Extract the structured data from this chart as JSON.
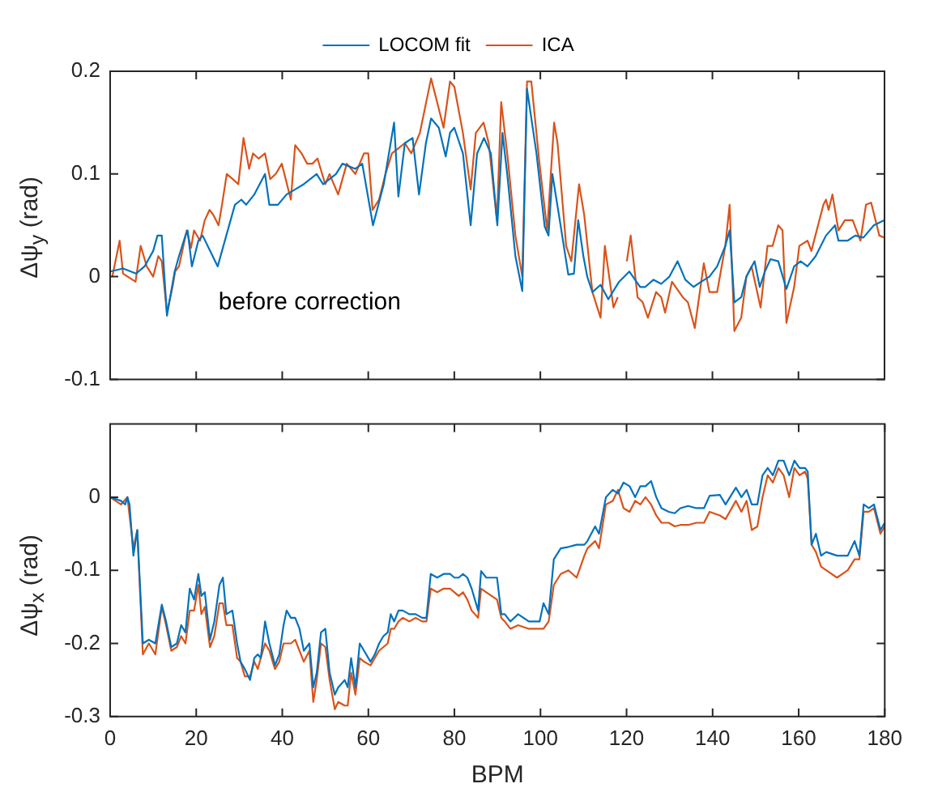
{
  "chart_data": [
    {
      "type": "line",
      "ylabel": "Δψ$_{y}$ (rad)",
      "annotations": [
        "before correction"
      ],
      "xlim": [
        0,
        180
      ],
      "xticks": [
        0,
        20,
        40,
        60,
        80,
        100,
        120,
        140,
        160,
        180
      ],
      "ylim": [
        -0.1,
        0.2
      ],
      "yticks": [
        -0.1,
        0,
        0.1,
        0.2
      ],
      "tick_labels": "y",
      "grid": false,
      "legend": "top",
      "marker": "none",
      "line_style": "solid",
      "series": [
        {
          "name": "LOCOM fit",
          "color": "#0072bd",
          "x": [
            0,
            3,
            6,
            8,
            10,
            11,
            12,
            13.2,
            15,
            16,
            17.5,
            18,
            19,
            20.5,
            21.5,
            25,
            29,
            30.5,
            31.6,
            33.5,
            36,
            37,
            39,
            41,
            43,
            45,
            48,
            49.5,
            52.5,
            54,
            57,
            58.6,
            61.1,
            63.6,
            66,
            67,
            68.5,
            70.3,
            71.8,
            73.4,
            74.6,
            76.4,
            78,
            79,
            80,
            82,
            83.8,
            85.3,
            86.9,
            88.5,
            90,
            91.2,
            92.3,
            94.2,
            95.8,
            96.9,
            99.1,
            101,
            101.9,
            102.8,
            104.7,
            106.5,
            107.8,
            108.8,
            110,
            110.9,
            112.1,
            114,
            115.8,
            118.3,
            120.7,
            123.2,
            124.4,
            126.3,
            128.1,
            130,
            131.9,
            133.7,
            135.6,
            137.4,
            139.3,
            141.1,
            143,
            144,
            145.1,
            146.7,
            147.9,
            149.8,
            151,
            152.2,
            153.5,
            155.3,
            157.2,
            159,
            160.5,
            162.1,
            164,
            166.4,
            168.5,
            169.3,
            171.4,
            173.2,
            175.1,
            177.5,
            180
          ],
          "values": [
            0.005,
            0.008,
            0.003,
            0.01,
            0.025,
            0.04,
            0.04,
            -0.038,
            0.005,
            0.02,
            0.04,
            0.045,
            0.01,
            0.035,
            0.04,
            0.01,
            0.07,
            0.075,
            0.07,
            0.08,
            0.1,
            0.07,
            0.07,
            0.08,
            0.085,
            0.09,
            0.1,
            0.09,
            0.1,
            0.11,
            0.105,
            0.11,
            0.05,
            0.09,
            0.15,
            0.078,
            0.13,
            0.135,
            0.08,
            0.13,
            0.154,
            0.145,
            0.117,
            0.14,
            0.145,
            0.12,
            0.05,
            0.12,
            0.135,
            0.12,
            0.05,
            0.14,
            0.1,
            0.02,
            -0.014,
            0.183,
            0.12,
            0.049,
            0.04,
            0.1,
            0.05,
            0.002,
            0.003,
            0.055,
            0.02,
            0,
            -0.015,
            -0.008,
            -0.022,
            -0.005,
            0.005,
            -0.01,
            -0.01,
            -0.003,
            -0.007,
            0,
            0.015,
            -0.003,
            -0.01,
            -0.005,
            0,
            0.01,
            0.03,
            0.045,
            -0.025,
            -0.02,
            0,
            0.015,
            -0.01,
            0.005,
            0.017,
            0.015,
            -0.012,
            0.01,
            0.015,
            0.01,
            0.02,
            0.04,
            0.05,
            0.035,
            0.035,
            0.04,
            0.038,
            0.05,
            0.055
          ]
        },
        {
          "name": "ICA",
          "color": "#d95319",
          "x": [
            0.5,
            2.2,
            3,
            5.9,
            7.1,
            8.5,
            10,
            11.2,
            12,
            13.2,
            14.5,
            15.1,
            16,
            17.8,
            18.8,
            19.5,
            20.9,
            22,
            23.1,
            24,
            25.2,
            26,
            27.1,
            28.5,
            29.8,
            31,
            32.3,
            33.2,
            34.5,
            36,
            37.2,
            38.5,
            39.9,
            42,
            43,
            44.5,
            45.8,
            47,
            48.2,
            50,
            51,
            53,
            55,
            57,
            59,
            60,
            61,
            62.5,
            64,
            65.5,
            67,
            68.5,
            70,
            72,
            74.6,
            76,
            77.5,
            79,
            80,
            82,
            83.8,
            85,
            86.8,
            88,
            89.9,
            90.9,
            92.3,
            94.2,
            95.8,
            96.9,
            97.9,
            99.8,
            101.6,
            103.2,
            104,
            106,
            107.2,
            109,
            110.2,
            112.1,
            114,
            115,
            117,
            118,
            119,
            120.1,
            121,
            122.6,
            123.8,
            125,
            126.9,
            128.1,
            129,
            130.6,
            133.1,
            134.3,
            135.9,
            138,
            139.3,
            141.1,
            143,
            144,
            145.1,
            146.7,
            147.9,
            149.1,
            151.2,
            152.8,
            154,
            155.3,
            156.3,
            157.2,
            159,
            160.2,
            162.1,
            163,
            165.8,
            166.4,
            167,
            167.9,
            169.3,
            170.8,
            172.6,
            174.4,
            175.7,
            176.9,
            178.8,
            180
          ],
          "values": [
            0,
            0.035,
            0.003,
            -0.005,
            0.03,
            0.01,
            0,
            0.02,
            0.015,
            -0.035,
            -0.01,
            0.005,
            0.01,
            0.045,
            0.028,
            0.045,
            0.035,
            0.055,
            0.065,
            0.06,
            0.05,
            0.07,
            0.1,
            0.095,
            0.09,
            0.135,
            0.105,
            0.12,
            0.115,
            0.12,
            0.095,
            0.1,
            0.11,
            0.075,
            0.128,
            0.12,
            0.11,
            0.11,
            0.115,
            0.09,
            0.1,
            0.08,
            0.11,
            0.1,
            0.12,
            0.12,
            0.065,
            0.075,
            0.1,
            0.12,
            0.125,
            0.13,
            0.12,
            0.14,
            0.193,
            0.17,
            0.145,
            0.19,
            0.185,
            0.14,
            0.085,
            0.14,
            0.15,
            0.13,
            0.055,
            0.17,
            0.12,
            0.04,
            0,
            0.19,
            0.19,
            0.11,
            0.045,
            0.15,
            0.13,
            0.03,
            0.015,
            0.09,
            0.06,
            -0.015,
            -0.04,
            0.03,
            -0.03,
            -0.02,
            null,
            0.015,
            0.04,
            -0.02,
            -0.025,
            -0.04,
            -0.015,
            -0.02,
            -0.035,
            -0.005,
            -0.02,
            -0.025,
            -0.05,
            0.013,
            -0.015,
            -0.015,
            0.03,
            0.07,
            -0.053,
            -0.04,
            0,
            0.01,
            -0.03,
            0.03,
            0.03,
            0.05,
            0.045,
            -0.045,
            -0.01,
            0.03,
            0.035,
            0.025,
            0.07,
            0.075,
            0.065,
            0.08,
            0.045,
            0.055,
            0.055,
            0.035,
            0.07,
            0.072,
            0.04,
            0.038
          ]
        }
      ]
    },
    {
      "type": "line",
      "xlabel": "BPM",
      "ylabel": "Δψ$_{x}$ (rad)",
      "xlim": [
        0,
        180
      ],
      "xticks": [
        0,
        20,
        40,
        60,
        80,
        100,
        120,
        140,
        160,
        180
      ],
      "ylim": [
        -0.3,
        0.1
      ],
      "yticks": [
        -0.3,
        -0.2,
        -0.1,
        0
      ],
      "grid": false,
      "marker": "none",
      "line_style": "solid",
      "series": [
        {
          "color": "#0072bd",
          "x": [
            0,
            2.5,
            3.5,
            4,
            4.5,
            5.4,
            6.3,
            7.6,
            9,
            10.5,
            12,
            13,
            14.2,
            15.5,
            16.5,
            17.5,
            18.5,
            19.5,
            20.5,
            21.2,
            22,
            23.2,
            24.2,
            25.4,
            26.2,
            27,
            28.4,
            29.5,
            30.3,
            31.3,
            32.5,
            33.5,
            34.3,
            35,
            36,
            37,
            38.3,
            39.3,
            40.3,
            41,
            42,
            43,
            44,
            45,
            46.3,
            47.2,
            48,
            49,
            50,
            51,
            52.2,
            53,
            54.5,
            55.2,
            56,
            57,
            58,
            59,
            60.5,
            61.5,
            62.5,
            63.5,
            64.5,
            65.2,
            66,
            67,
            68,
            69.5,
            71,
            72.5,
            73.5,
            74.5,
            76,
            77.5,
            79,
            80,
            81,
            82,
            83,
            84,
            85.5,
            86.2,
            87.4,
            89.9,
            90.9,
            91.7,
            93,
            94.8,
            97.3,
            99.8,
            100.7,
            101.9,
            103.1,
            104.7,
            106.5,
            108.4,
            110.2,
            110.9,
            112.7,
            113.6,
            115.2,
            116.8,
            118,
            119.3,
            120.7,
            122,
            123.2,
            124.4,
            125.7,
            126.9,
            128.1,
            129.8,
            131.2,
            132.5,
            134.3,
            136.2,
            138,
            139.3,
            141.7,
            143,
            145.4,
            146.7,
            147.9,
            149.1,
            150.4,
            151.6,
            152.8,
            154,
            155.3,
            156.5,
            157.8,
            159,
            160.2,
            161.5,
            162.1,
            163,
            164,
            165.2,
            166.4,
            168.9,
            171.4,
            173,
            174.1,
            175.1,
            176.3,
            177.5,
            179,
            180
          ],
          "values": [
            0,
            -0.005,
            -0.01,
            0,
            -0.01,
            -0.08,
            -0.045,
            -0.2,
            -0.195,
            -0.2,
            -0.147,
            -0.17,
            -0.205,
            -0.2,
            -0.175,
            -0.185,
            -0.125,
            -0.14,
            -0.105,
            -0.135,
            -0.13,
            -0.195,
            -0.17,
            -0.12,
            -0.11,
            -0.16,
            -0.155,
            -0.2,
            -0.225,
            -0.235,
            -0.25,
            -0.22,
            -0.215,
            -0.22,
            -0.17,
            -0.2,
            -0.23,
            -0.215,
            -0.175,
            -0.155,
            -0.165,
            -0.165,
            -0.18,
            -0.21,
            -0.2,
            -0.26,
            -0.24,
            -0.185,
            -0.18,
            -0.24,
            -0.27,
            -0.26,
            -0.25,
            -0.26,
            -0.22,
            -0.26,
            -0.2,
            -0.21,
            -0.225,
            -0.215,
            -0.2,
            -0.19,
            -0.185,
            -0.16,
            -0.17,
            -0.155,
            -0.155,
            -0.16,
            -0.16,
            -0.165,
            -0.165,
            -0.105,
            -0.11,
            -0.105,
            -0.105,
            -0.11,
            -0.11,
            -0.105,
            -0.11,
            -0.125,
            -0.155,
            -0.101,
            -0.11,
            -0.11,
            -0.16,
            -0.16,
            -0.17,
            -0.16,
            -0.17,
            -0.17,
            -0.145,
            -0.16,
            -0.085,
            -0.07,
            -0.068,
            -0.065,
            -0.065,
            -0.06,
            -0.04,
            -0.05,
            0,
            0.01,
            0.005,
            0.02,
            0.015,
            0,
            0.015,
            0.015,
            0.022,
            0,
            -0.015,
            -0.02,
            -0.022,
            -0.015,
            -0.012,
            -0.015,
            -0.015,
            0.002,
            0.003,
            -0.01,
            0.013,
            0,
            0.01,
            -0.01,
            -0.01,
            0.03,
            0.04,
            0.03,
            0.05,
            0.05,
            0.03,
            0.05,
            0.04,
            0.04,
            0.035,
            -0.065,
            -0.05,
            -0.08,
            -0.075,
            -0.08,
            -0.08,
            -0.06,
            -0.08,
            -0.01,
            -0.015,
            -0.01,
            -0.045,
            -0.035
          ]
        },
        {
          "color": "#d95319",
          "x": [
            0,
            2.5,
            4,
            5.4,
            6.3,
            7.6,
            9,
            10.5,
            12,
            13,
            14.2,
            15.5,
            16.5,
            17.5,
            18.5,
            19.5,
            20.5,
            21.2,
            22,
            23.2,
            24.2,
            25.4,
            26.2,
            27,
            28.4,
            29.5,
            30.3,
            31.3,
            32.5,
            33.5,
            34.3,
            35,
            36,
            37,
            38.3,
            39.3,
            40.3,
            41,
            42,
            43,
            44,
            45,
            46.3,
            47.2,
            48,
            49,
            50,
            51,
            52.2,
            53,
            54.5,
            55.2,
            56,
            57,
            58,
            59,
            60.5,
            61.5,
            62.5,
            63.5,
            64.5,
            65.2,
            66,
            67,
            68,
            69.5,
            71,
            72.5,
            73.5,
            74.5,
            76,
            77.5,
            79,
            80,
            81,
            82,
            83,
            84,
            85.5,
            86.2,
            87.4,
            89.9,
            90.9,
            91.7,
            93,
            94.8,
            97.3,
            99.8,
            100.7,
            101.9,
            103.1,
            104.7,
            106.5,
            108.4,
            110.2,
            110.9,
            112.7,
            113.6,
            115.2,
            116.8,
            118,
            119.3,
            120.7,
            122,
            123.2,
            124.4,
            125.7,
            126.9,
            128.1,
            129.8,
            131.2,
            132.5,
            134.3,
            136.2,
            138,
            139.3,
            141.7,
            143,
            145.4,
            146.7,
            147.9,
            149.1,
            150.4,
            151.6,
            152.8,
            154,
            155.3,
            156.5,
            157.8,
            159,
            160.2,
            161.5,
            162.1,
            163,
            164,
            165.2,
            166.4,
            168.9,
            171.4,
            173,
            174.1,
            175.1,
            176.3,
            177.5,
            179,
            180
          ],
          "values": [
            0,
            -0.01,
            0,
            -0.07,
            -0.045,
            -0.215,
            -0.2,
            -0.215,
            -0.15,
            -0.175,
            -0.21,
            -0.205,
            -0.19,
            -0.2,
            -0.155,
            -0.155,
            -0.12,
            -0.16,
            -0.15,
            -0.205,
            -0.19,
            -0.145,
            -0.145,
            -0.175,
            -0.175,
            -0.22,
            -0.225,
            -0.245,
            -0.245,
            -0.225,
            -0.235,
            -0.22,
            -0.2,
            -0.21,
            -0.235,
            -0.225,
            -0.2,
            -0.2,
            -0.2,
            -0.195,
            -0.21,
            -0.225,
            -0.21,
            -0.28,
            -0.25,
            -0.2,
            -0.205,
            -0.25,
            -0.29,
            -0.28,
            -0.285,
            -0.285,
            -0.24,
            -0.27,
            -0.22,
            -0.225,
            -0.23,
            -0.22,
            -0.21,
            -0.205,
            -0.2,
            -0.18,
            -0.18,
            -0.17,
            -0.165,
            -0.17,
            -0.165,
            -0.17,
            -0.17,
            -0.125,
            -0.13,
            -0.125,
            -0.125,
            -0.13,
            -0.135,
            -0.13,
            -0.14,
            -0.155,
            -0.165,
            -0.125,
            -0.13,
            -0.14,
            -0.165,
            -0.17,
            -0.18,
            -0.175,
            -0.18,
            -0.18,
            -0.18,
            -0.17,
            -0.12,
            -0.105,
            -0.1,
            -0.11,
            -0.08,
            -0.07,
            -0.06,
            -0.07,
            -0.01,
            -0.005,
            0.01,
            -0.015,
            -0.02,
            -0.005,
            -0.01,
            0,
            -0.01,
            -0.025,
            -0.035,
            -0.035,
            -0.04,
            -0.038,
            -0.038,
            -0.035,
            -0.035,
            -0.02,
            -0.025,
            -0.03,
            -0.005,
            -0.02,
            -0.005,
            -0.045,
            -0.04,
            0,
            0.03,
            0.02,
            0.04,
            0.03,
            0,
            0.04,
            0.03,
            0.035,
            0.025,
            -0.065,
            -0.075,
            -0.095,
            -0.1,
            -0.11,
            -0.1,
            -0.085,
            -0.085,
            -0.02,
            -0.02,
            -0.015,
            -0.05,
            -0.04
          ]
        }
      ]
    }
  ]
}
